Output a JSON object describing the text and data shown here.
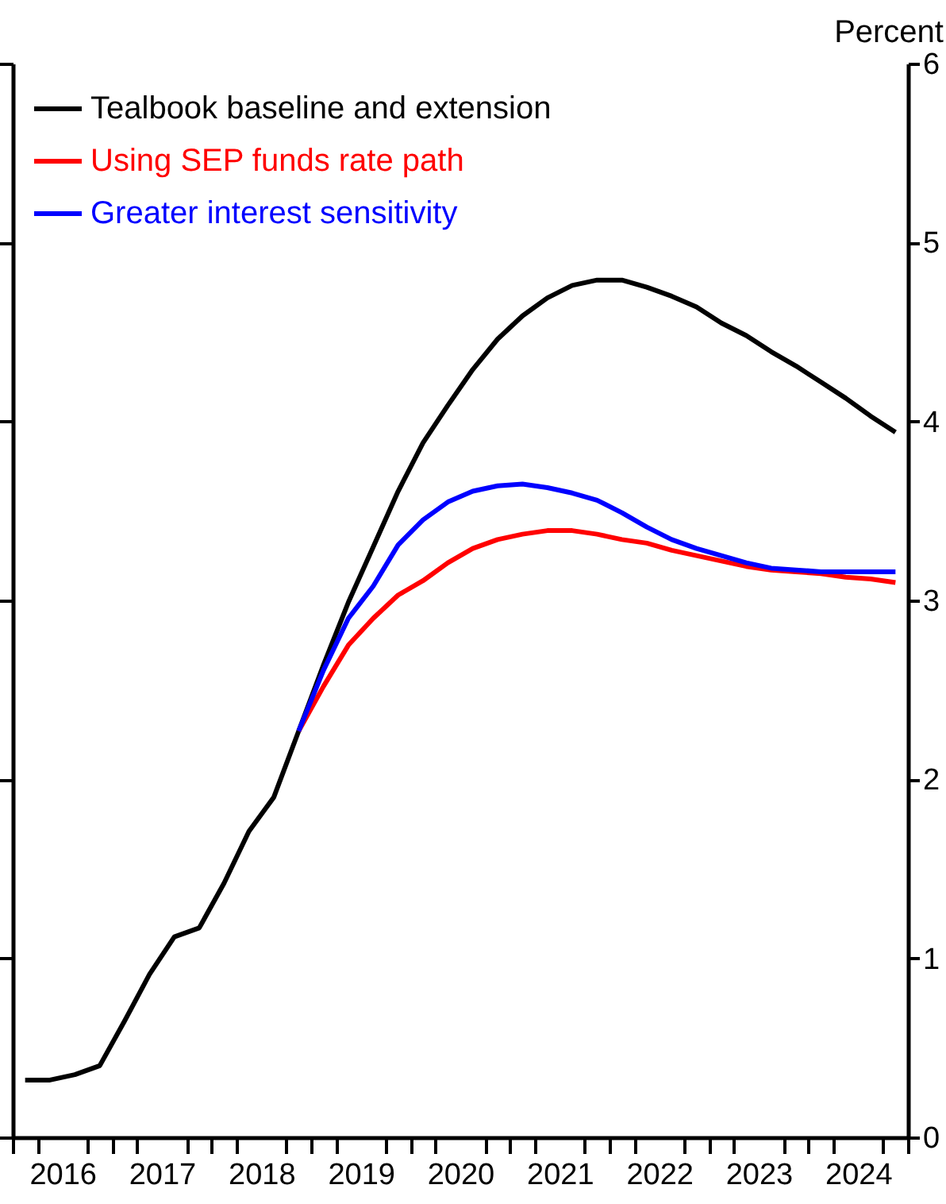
{
  "chart_data": {
    "type": "line",
    "ylabel": "Percent",
    "x": [
      2016.125,
      2016.375,
      2016.625,
      2016.875,
      2017.125,
      2017.375,
      2017.625,
      2017.875,
      2018.125,
      2018.375,
      2018.625,
      2018.875,
      2019.125,
      2019.375,
      2019.625,
      2019.875,
      2020.125,
      2020.375,
      2020.625,
      2020.875,
      2021.125,
      2021.375,
      2021.625,
      2021.875,
      2022.125,
      2022.375,
      2022.625,
      2022.875,
      2023.125,
      2023.375,
      2023.625,
      2023.875,
      2024.125,
      2024.375,
      2024.625,
      2024.875
    ],
    "series": [
      {
        "name": "Tealbook baseline and extension",
        "color": "#000000",
        "values": [
          0.32,
          0.32,
          0.35,
          0.4,
          0.65,
          0.91,
          1.12,
          1.17,
          1.42,
          1.71,
          1.9,
          2.27,
          2.64,
          2.99,
          3.3,
          3.61,
          3.88,
          4.09,
          4.29,
          4.46,
          4.59,
          4.69,
          4.76,
          4.79,
          4.79,
          4.75,
          4.7,
          4.64,
          4.55,
          4.48,
          4.39,
          4.31,
          4.22,
          4.13,
          4.03,
          3.94
        ]
      },
      {
        "name": "Using SEP funds rate path",
        "color": "#ff0000",
        "values": [
          null,
          null,
          null,
          null,
          null,
          null,
          null,
          null,
          null,
          null,
          null,
          2.27,
          2.52,
          2.75,
          2.9,
          3.03,
          3.11,
          3.21,
          3.29,
          3.34,
          3.37,
          3.39,
          3.39,
          3.37,
          3.34,
          3.32,
          3.28,
          3.25,
          3.22,
          3.19,
          3.17,
          3.16,
          3.15,
          3.13,
          3.12,
          3.1
        ]
      },
      {
        "name": "Greater interest sensitivity",
        "color": "#0000ff",
        "values": [
          null,
          null,
          null,
          null,
          null,
          null,
          null,
          null,
          null,
          null,
          null,
          2.27,
          2.61,
          2.9,
          3.08,
          3.31,
          3.45,
          3.55,
          3.61,
          3.64,
          3.65,
          3.63,
          3.6,
          3.56,
          3.49,
          3.41,
          3.34,
          3.29,
          3.25,
          3.21,
          3.18,
          3.17,
          3.16,
          3.16,
          3.16,
          3.16
        ]
      }
    ],
    "xlim": [
      2016,
      2025
    ],
    "xticks": [
      {
        "value": 2016,
        "label": null
      },
      {
        "value": 2016.25,
        "label": null
      },
      {
        "value": 2016.5,
        "label": "2016"
      },
      {
        "value": 2016.75,
        "label": null
      },
      {
        "value": 2017,
        "label": null
      },
      {
        "value": 2017.25,
        "label": null
      },
      {
        "value": 2017.5,
        "label": "2017"
      },
      {
        "value": 2017.75,
        "label": null
      },
      {
        "value": 2018,
        "label": null
      },
      {
        "value": 2018.25,
        "label": null
      },
      {
        "value": 2018.5,
        "label": "2018"
      },
      {
        "value": 2018.75,
        "label": null
      },
      {
        "value": 2019,
        "label": null
      },
      {
        "value": 2019.25,
        "label": null
      },
      {
        "value": 2019.5,
        "label": "2019"
      },
      {
        "value": 2019.75,
        "label": null
      },
      {
        "value": 2020,
        "label": null
      },
      {
        "value": 2020.25,
        "label": null
      },
      {
        "value": 2020.5,
        "label": "2020"
      },
      {
        "value": 2020.75,
        "label": null
      },
      {
        "value": 2021,
        "label": null
      },
      {
        "value": 2021.25,
        "label": null
      },
      {
        "value": 2021.5,
        "label": "2021"
      },
      {
        "value": 2021.75,
        "label": null
      },
      {
        "value": 2022,
        "label": null
      },
      {
        "value": 2022.25,
        "label": null
      },
      {
        "value": 2022.5,
        "label": "2022"
      },
      {
        "value": 2022.75,
        "label": null
      },
      {
        "value": 2023,
        "label": null
      },
      {
        "value": 2023.25,
        "label": null
      },
      {
        "value": 2023.5,
        "label": "2023"
      },
      {
        "value": 2023.75,
        "label": null
      },
      {
        "value": 2024,
        "label": null
      },
      {
        "value": 2024.25,
        "label": null
      },
      {
        "value": 2024.5,
        "label": "2024"
      },
      {
        "value": 2024.75,
        "label": null
      },
      {
        "value": 2025,
        "label": null
      }
    ],
    "ylim": [
      0,
      6
    ],
    "yticks": [
      0,
      1,
      2,
      3,
      4,
      5,
      6
    ],
    "legend": "top left",
    "grid": false,
    "marker": "none",
    "line_style": "solid"
  }
}
